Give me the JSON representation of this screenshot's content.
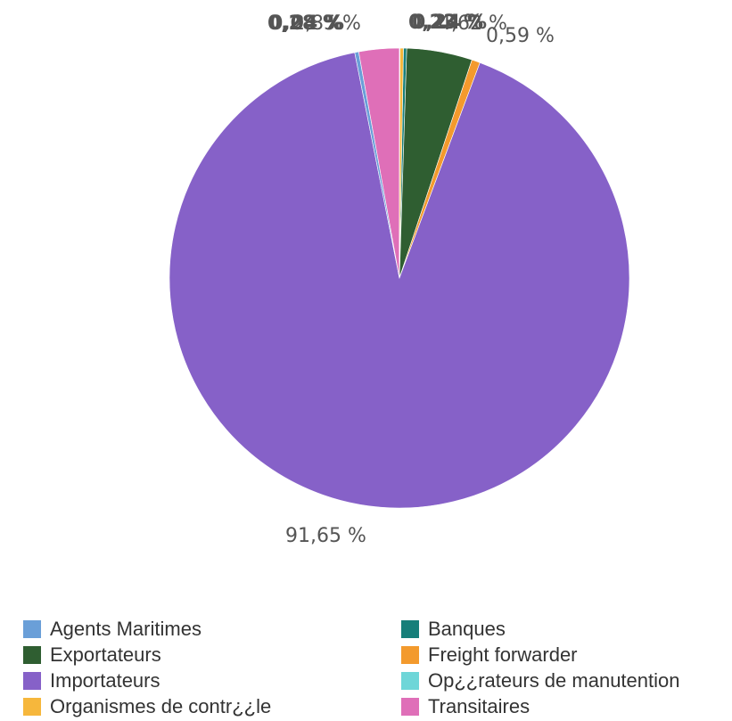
{
  "chart_data": {
    "type": "pie",
    "title": "",
    "slices": [
      {
        "label": "Agents Maritimes",
        "value": 0.28,
        "label_text": "0,28 %",
        "color": "#6a9fd8"
      },
      {
        "label": "Banques",
        "value": 0.23,
        "label_text": "0,23 %",
        "color": "#177f7a"
      },
      {
        "label": "Exportateurs",
        "value": 4.62,
        "label_text": "4,62 %",
        "color": "#2f5e31"
      },
      {
        "label": "Freight forwarder",
        "value": 0.59,
        "label_text": "0,59 %",
        "color": "#f39a2d"
      },
      {
        "label": "Importateurs",
        "value": 91.65,
        "label_text": "91,65 %",
        "color": "#8661c8"
      },
      {
        "label": "Op¿¿rateurs de manutention",
        "value": 0.04,
        "label_text": "0,04 %",
        "color": "#6ed6d8"
      },
      {
        "label": "Organismes de contr¿¿le",
        "value": 0.24,
        "label_text": "0,24 %",
        "color": "#f6b73c"
      },
      {
        "label": "Transitaires",
        "value": 2.85,
        "label_text": "2,85 %",
        "color": "#df6fb8"
      }
    ],
    "legend_position": "bottom"
  }
}
